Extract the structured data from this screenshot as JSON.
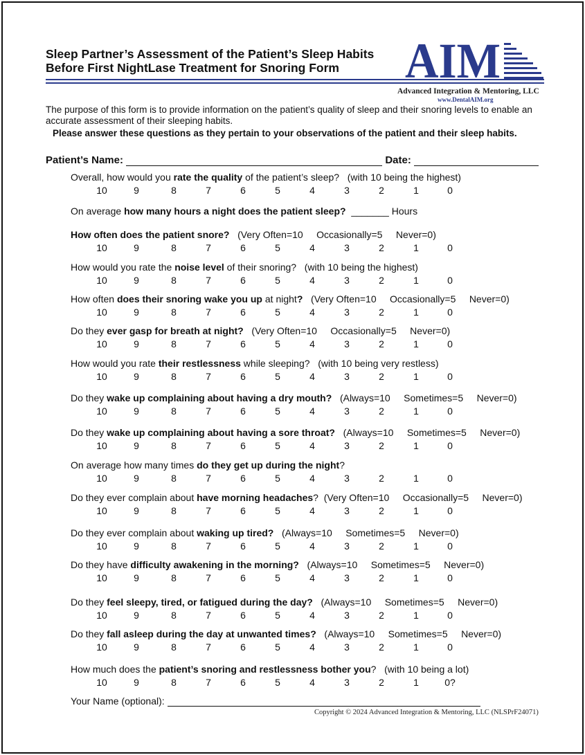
{
  "header": {
    "title_line1": "Sleep Partner’s Assessment of the Patient’s Sleep Habits",
    "title_line2": "Before First NightLase Treatment for Snoring Form",
    "logo_text": "AIM",
    "company": "Advanced Integration & Mentoring, LLC",
    "url": "www.DentalAIM.org",
    "brand_color": "#2a3a8c"
  },
  "intro": "The purpose of this form is to provide information on the patient’s quality of sleep and their snoring levels to enable an accurate assessment of their sleeping habits.",
  "instructions": "Please answer these questions as they pertain to your observations of the patient and their sleep habits.",
  "patient_name_label": "Patient’s Name:",
  "date_label": "Date:",
  "scale": [
    "10",
    "9",
    "8",
    "7",
    "6",
    "5",
    "4",
    "3",
    "2",
    "1",
    "0"
  ],
  "last_scale_end": "0?",
  "questions": [
    {
      "parts": [
        [
          "Overall, how would you ",
          0
        ],
        [
          "rate the quality",
          1
        ],
        [
          " of the patient’s sleep?   (with 10 being the highest)",
          0
        ]
      ],
      "scale": true
    },
    {
      "parts": [
        [
          "On average ",
          0
        ],
        [
          "how many hours a night does the patient sleep?",
          1
        ],
        [
          "  _______ Hours",
          0
        ]
      ],
      "scale": false
    },
    {
      "parts": [
        [
          "How often does the patient snore?",
          1
        ],
        [
          "   (Very Often=10     Occasionally=5     Never=0)",
          0
        ]
      ],
      "scale": true
    },
    {
      "parts": [
        [
          "How would you rate the ",
          0
        ],
        [
          "noise level",
          1
        ],
        [
          " of their snoring?   (with 10 being the highest)",
          0
        ]
      ],
      "scale": true
    },
    {
      "parts": [
        [
          "How often ",
          0
        ],
        [
          "does their snoring wake you up",
          1
        ],
        [
          " at night",
          0
        ],
        [
          "?",
          1
        ],
        [
          "   (Very Often=10     Occasionally=5     Never=0)",
          0
        ]
      ],
      "scale": true
    },
    {
      "parts": [
        [
          "Do they ",
          0
        ],
        [
          "ever gasp for breath at night?",
          1
        ],
        [
          "   (Very Often=10     Occasionally=5     Never=0)",
          0
        ]
      ],
      "scale": true
    },
    {
      "parts": [
        [
          "How would you rate ",
          0
        ],
        [
          "their restlessness",
          1
        ],
        [
          " while sleeping?   (with 10 being very restless)",
          0
        ]
      ],
      "scale": true
    },
    {
      "parts": [
        [
          "Do they ",
          0
        ],
        [
          "wake up complaining about having a dry mouth?",
          1
        ],
        [
          "   (Always=10     Sometimes=5     Never=0)",
          0
        ]
      ],
      "scale": true
    },
    {
      "parts": [
        [
          "Do they ",
          0
        ],
        [
          "wake up complaining about having a sore throat?",
          1
        ],
        [
          "   (Always=10     Sometimes=5     Never=0)",
          0
        ]
      ],
      "scale": true
    },
    {
      "parts": [
        [
          "On average how many times ",
          0
        ],
        [
          "do they get up during the night",
          1
        ],
        [
          "?",
          0
        ]
      ],
      "scale": true
    },
    {
      "parts": [
        [
          "Do they ever complain about ",
          0
        ],
        [
          "have morning headaches",
          1
        ],
        [
          "?  (Very Often=10     Occasionally=5     Never=0)",
          0
        ]
      ],
      "scale": true
    },
    {
      "parts": [
        [
          "Do they ever complain about ",
          0
        ],
        [
          "waking up tired?",
          1
        ],
        [
          "   (Always=10     Sometimes=5     Never=0)",
          0
        ]
      ],
      "scale": true
    },
    {
      "parts": [
        [
          "Do they have ",
          0
        ],
        [
          "difficulty awakening in the morning?",
          1
        ],
        [
          "   (Always=10     Sometimes=5     Never=0)",
          0
        ]
      ],
      "scale": true
    },
    {
      "parts": [
        [
          "Do they ",
          0
        ],
        [
          "feel sleepy, tired, or fatigued during the day?",
          1
        ],
        [
          "   (Always=10     Sometimes=5     Never=0)",
          0
        ]
      ],
      "scale": true
    },
    {
      "parts": [
        [
          "Do they ",
          0
        ],
        [
          "fall asleep during the day at unwanted times?",
          1
        ],
        [
          "   (Always=10     Sometimes=5     Never=0)",
          0
        ]
      ],
      "scale": true
    },
    {
      "parts": [
        [
          "How much does the ",
          0
        ],
        [
          "patient’s snoring and restlessness bother you",
          1
        ],
        [
          "?   (with 10 being a lot)",
          0
        ]
      ],
      "scale": true,
      "last": true
    }
  ],
  "your_name_label": "Your Name (optional):",
  "copyright": "Copyright © 2024 Advanced Integration & Mentoring, LLC (NLSPrF24071)"
}
